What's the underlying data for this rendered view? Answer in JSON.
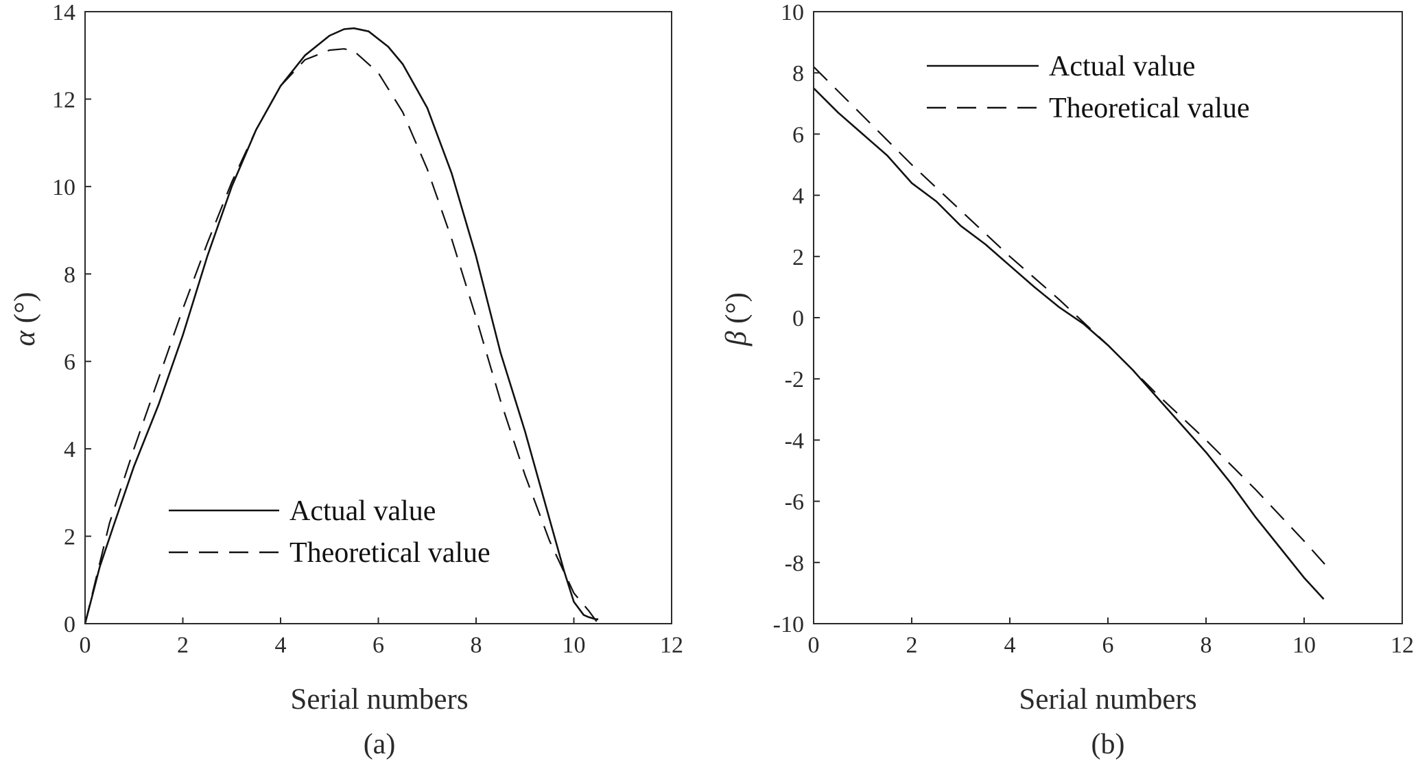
{
  "chart_data": [
    {
      "type": "line",
      "panel": "(a)",
      "xlabel": "Serial numbers",
      "ylabel_symbol": "α",
      "ylabel_unit": " (°)",
      "xlim": [
        0,
        12
      ],
      "ylim": [
        0,
        14
      ],
      "xticks": [
        0,
        2,
        4,
        6,
        8,
        10,
        12
      ],
      "yticks": [
        0,
        2,
        4,
        6,
        8,
        10,
        12,
        14
      ],
      "legend_position": "lower-center",
      "series": [
        {
          "name": "Actual value",
          "style": "solid",
          "x": [
            0,
            0.3,
            0.6,
            1.0,
            1.5,
            2.0,
            2.5,
            3.0,
            3.5,
            4.0,
            4.5,
            5.0,
            5.3,
            5.5,
            5.8,
            6.2,
            6.5,
            7.0,
            7.5,
            8.0,
            8.5,
            9.0,
            9.5,
            9.8,
            10.0,
            10.2,
            10.3,
            10.45,
            10.5
          ],
          "y": [
            0,
            1.3,
            2.3,
            3.6,
            5.0,
            6.6,
            8.4,
            10.0,
            11.3,
            12.3,
            13.0,
            13.45,
            13.6,
            13.62,
            13.55,
            13.2,
            12.8,
            11.8,
            10.3,
            8.4,
            6.2,
            4.4,
            2.4,
            1.2,
            0.5,
            0.2,
            0.15,
            0.1,
            0.1
          ]
        },
        {
          "name": "Theoretical value",
          "style": "dashed",
          "x": [
            0,
            0.5,
            1.0,
            1.5,
            2.0,
            2.5,
            3.0,
            3.5,
            4.0,
            4.5,
            5.0,
            5.3,
            5.5,
            6.0,
            6.5,
            7.0,
            7.5,
            8.0,
            8.5,
            9.0,
            9.5,
            10.0,
            10.3,
            10.5
          ],
          "y": [
            0,
            2.3,
            4.0,
            5.6,
            7.2,
            8.7,
            10.1,
            11.3,
            12.3,
            12.9,
            13.12,
            13.15,
            13.1,
            12.6,
            11.7,
            10.4,
            8.8,
            7.0,
            5.1,
            3.4,
            1.9,
            0.7,
            0.3,
            0.0
          ]
        }
      ]
    },
    {
      "type": "line",
      "panel": "(b)",
      "xlabel": "Serial numbers",
      "ylabel_symbol": "β",
      "ylabel_unit": " (°)",
      "xlim": [
        0,
        12
      ],
      "ylim": [
        -10,
        10
      ],
      "xticks": [
        0,
        2,
        4,
        6,
        8,
        10,
        12
      ],
      "yticks": [
        -10,
        -8,
        -6,
        -4,
        -2,
        0,
        2,
        4,
        6,
        8,
        10
      ],
      "legend_position": "top-center",
      "series": [
        {
          "name": "Actual value",
          "style": "solid",
          "x": [
            0,
            0.5,
            1.0,
            1.5,
            2.0,
            2.5,
            3.0,
            3.5,
            4.0,
            4.5,
            5.0,
            5.5,
            6.0,
            6.5,
            7.0,
            7.5,
            8.0,
            8.5,
            9.0,
            9.5,
            10.0,
            10.4
          ],
          "y": [
            7.5,
            6.7,
            6.0,
            5.3,
            4.4,
            3.8,
            3.0,
            2.4,
            1.7,
            1.0,
            0.35,
            -0.2,
            -0.9,
            -1.7,
            -2.6,
            -3.5,
            -4.4,
            -5.4,
            -6.5,
            -7.5,
            -8.5,
            -9.2
          ]
        },
        {
          "name": "Theoretical value",
          "style": "dashed",
          "x": [
            0,
            1.0,
            2.0,
            3.0,
            4.0,
            5.0,
            6.0,
            7.0,
            8.0,
            9.0,
            10.0,
            10.5
          ],
          "y": [
            8.2,
            6.6,
            5.0,
            3.5,
            2.0,
            0.6,
            -0.9,
            -2.5,
            -4.0,
            -5.6,
            -7.3,
            -8.2
          ]
        }
      ]
    }
  ]
}
